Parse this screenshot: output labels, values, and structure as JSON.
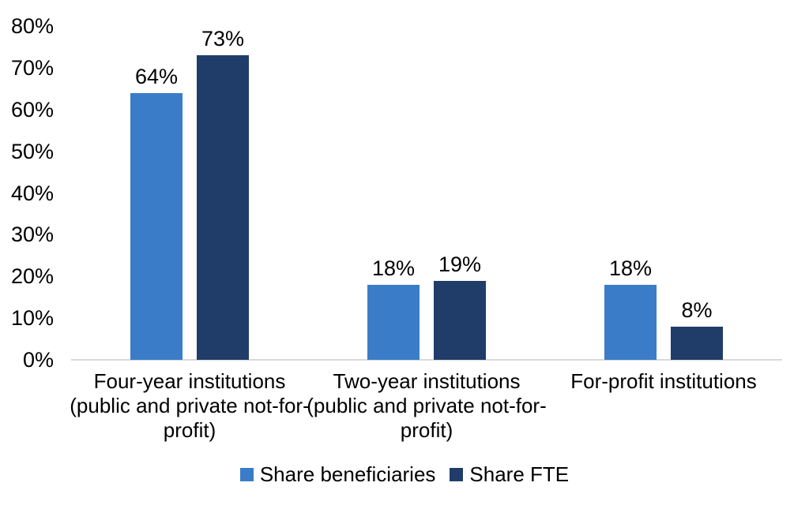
{
  "chart_data": {
    "type": "bar",
    "title": "",
    "xlabel": "",
    "ylabel": "",
    "ylim": [
      0,
      80
    ],
    "ytick_step": 10,
    "yticks": [
      "0%",
      "10%",
      "20%",
      "30%",
      "40%",
      "50%",
      "60%",
      "70%",
      "80%"
    ],
    "grid": false,
    "legend_position": "bottom",
    "categories": [
      "Four-year institutions (public and private not-for-profit)",
      "Two-year institutions (public and private not-for-profit)",
      "For-profit institutions"
    ],
    "category_lines": [
      [
        "Four-year institutions",
        "(public and private not-for-",
        "profit)"
      ],
      [
        "Two-year institutions",
        "(public and private not-for-",
        "profit)"
      ],
      [
        "For-profit institutions"
      ]
    ],
    "series": [
      {
        "name": "Share beneficiaries",
        "color": "#3A7CC8",
        "values": [
          64,
          18,
          18
        ]
      },
      {
        "name": "Share FTE",
        "color": "#1F3D68",
        "values": [
          73,
          19,
          8
        ]
      }
    ],
    "display_values": [
      [
        "64%",
        "18%",
        "18%"
      ],
      [
        "73%",
        "19%",
        "8%"
      ]
    ],
    "axis_line_color": "#D9D9D9",
    "text_color": "#000000"
  }
}
